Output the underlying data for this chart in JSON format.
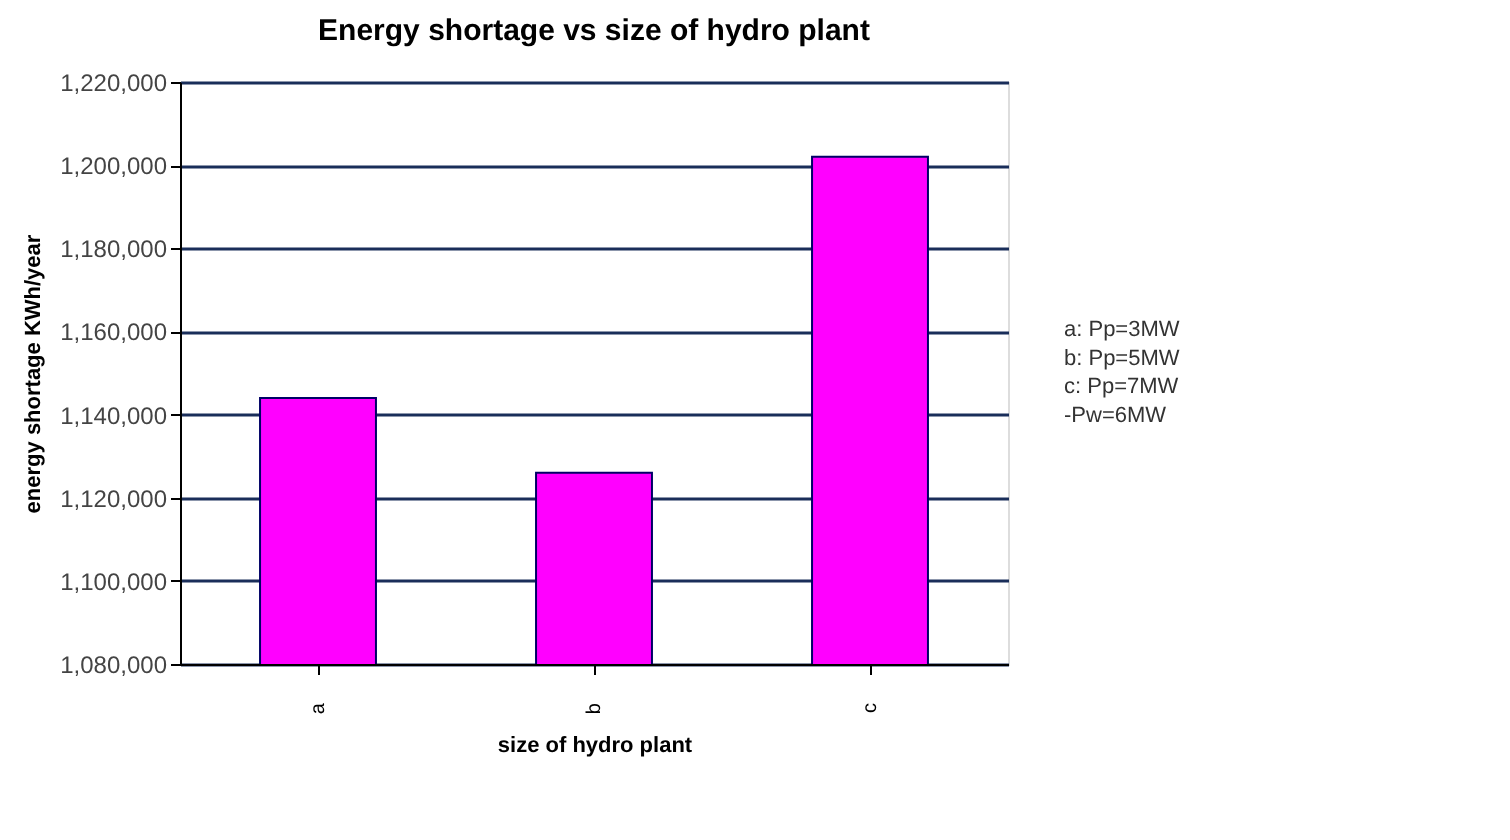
{
  "chart_data": {
    "type": "bar",
    "title": "Energy shortage vs size of hydro plant",
    "xlabel": "size of hydro plant",
    "ylabel": "energy shortage KWh/year",
    "categories": [
      "a",
      "b",
      "c"
    ],
    "series": [
      {
        "color": "#ff00ff",
        "values": [
          1144000,
          1126000,
          1202000
        ]
      }
    ],
    "ylim": [
      1080000,
      1220000
    ],
    "yticks": [
      {
        "value": 1080000,
        "label": "1,080,000"
      },
      {
        "value": 1100000,
        "label": "1,100,000"
      },
      {
        "value": 1120000,
        "label": "1,120,000"
      },
      {
        "value": 1140000,
        "label": "1,140,000"
      },
      {
        "value": 1160000,
        "label": "1,160,000"
      },
      {
        "value": 1180000,
        "label": "1,180,000"
      },
      {
        "value": 1200000,
        "label": "1,200,000"
      },
      {
        "value": 1220000,
        "label": "1,220,000"
      }
    ],
    "grid": "y",
    "annotations": [
      "a: Pp=3MW",
      "b: Pp=5MW",
      "c: Pp=7MW",
      "-Pw=6MW"
    ]
  }
}
